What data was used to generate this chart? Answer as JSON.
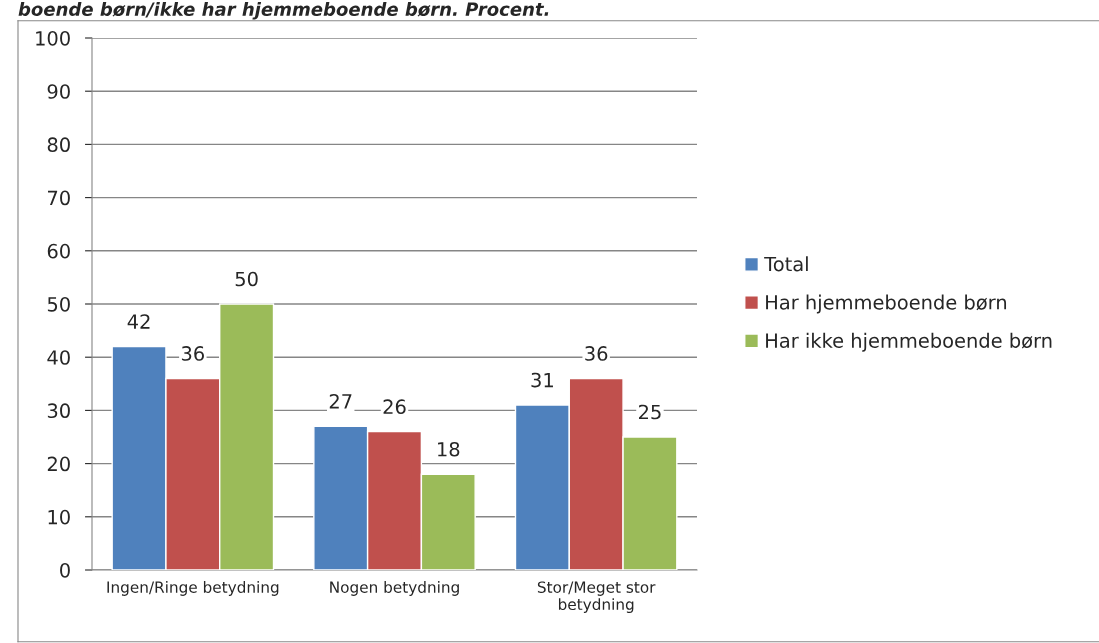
{
  "chart_data": {
    "type": "bar",
    "title": "boende børn/ikke har hjemmeboende børn. Procent.",
    "categories": [
      "Ingen/Ringe betydning",
      "Nogen betydning",
      "Stor/Meget stor\nbetydning"
    ],
    "series": [
      {
        "name": "Total",
        "color": "#4f81bd",
        "values": [
          42,
          27,
          31
        ]
      },
      {
        "name": "Har hjemmeboende børn",
        "color": "#c0504d",
        "values": [
          36,
          26,
          36
        ]
      },
      {
        "name": "Har ikke hjemmeboende børn",
        "color": "#9bbb59",
        "values": [
          50,
          18,
          25
        ]
      }
    ],
    "ylim": [
      0,
      100
    ],
    "yticks": [
      0,
      10,
      20,
      30,
      40,
      50,
      60,
      70,
      80,
      90,
      100
    ],
    "grid": "y",
    "legend": "right",
    "data_labels": true
  }
}
